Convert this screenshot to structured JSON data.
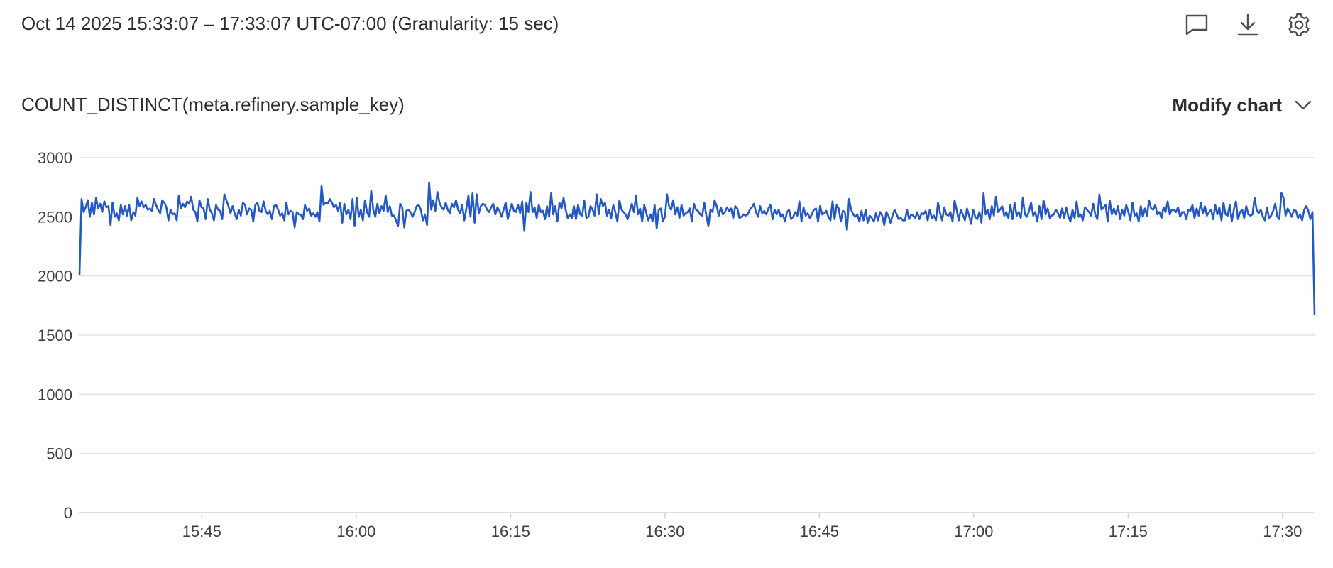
{
  "header": {
    "time_range": "Oct 14 2025 15:33:07 – 17:33:07 UTC-07:00 (Granularity: 15 sec)",
    "icons": [
      "comment-icon",
      "download-icon",
      "settings-gear-icon"
    ]
  },
  "chart_header": {
    "title": "COUNT_DISTINCT(meta.refinery.sample_key)",
    "modify_label": "Modify chart"
  },
  "chart_data": {
    "type": "line",
    "title": "COUNT_DISTINCT(meta.refinery.sample_key)",
    "x_start": "15:33:07",
    "x_end": "17:33:07",
    "granularity_sec": 15,
    "x_ticks": [
      "15:45",
      "16:00",
      "16:15",
      "16:30",
      "16:45",
      "17:00",
      "17:15",
      "17:30"
    ],
    "y_ticks": [
      "0",
      "500",
      "1000",
      "1500",
      "2000",
      "2500",
      "3000"
    ],
    "ylim": [
      0,
      3000
    ],
    "grid": true,
    "line_color": "#2458c6",
    "series": [
      {
        "values": [
          2010,
          2650,
          2540,
          2580,
          2640,
          2500,
          2620,
          2520,
          2660,
          2570,
          2610,
          2540,
          2630,
          2580,
          2590,
          2430,
          2620,
          2500,
          2530,
          2470,
          2600,
          2520,
          2590,
          2510,
          2600,
          2470,
          2540,
          2510,
          2660,
          2590,
          2630,
          2580,
          2600,
          2560,
          2570,
          2550,
          2650,
          2600,
          2560,
          2530,
          2640,
          2620,
          2580,
          2470,
          2560,
          2520,
          2530,
          2470,
          2680,
          2570,
          2610,
          2580,
          2630,
          2610,
          2670,
          2560,
          2540,
          2460,
          2640,
          2580,
          2570,
          2480,
          2650,
          2560,
          2530,
          2470,
          2600,
          2560,
          2550,
          2480,
          2690,
          2640,
          2590,
          2530,
          2590,
          2530,
          2480,
          2560,
          2510,
          2620,
          2600,
          2520,
          2570,
          2560,
          2460,
          2600,
          2620,
          2550,
          2540,
          2630,
          2550,
          2520,
          2550,
          2480,
          2590,
          2600,
          2560,
          2510,
          2530,
          2470,
          2620,
          2520,
          2550,
          2540,
          2410,
          2540,
          2520,
          2520,
          2480,
          2600,
          2550,
          2570,
          2510,
          2530,
          2500,
          2540,
          2460,
          2760,
          2600,
          2620,
          2610,
          2650,
          2620,
          2580,
          2600,
          2550,
          2620,
          2450,
          2610,
          2520,
          2560,
          2480,
          2650,
          2420,
          2660,
          2500,
          2560,
          2470,
          2640,
          2540,
          2500,
          2720,
          2560,
          2500,
          2610,
          2530,
          2590,
          2550,
          2680,
          2540,
          2590,
          2510,
          2510,
          2470,
          2420,
          2610,
          2580,
          2410,
          2550,
          2560,
          2540,
          2500,
          2540,
          2590,
          2600,
          2560,
          2470,
          2520,
          2430,
          2790,
          2560,
          2640,
          2550,
          2710,
          2620,
          2580,
          2560,
          2620,
          2560,
          2530,
          2610,
          2580,
          2640,
          2560,
          2530,
          2600,
          2470,
          2570,
          2680,
          2500,
          2700,
          2450,
          2690,
          2530,
          2590,
          2610,
          2600,
          2560,
          2540,
          2580,
          2610,
          2520,
          2580,
          2550,
          2500,
          2560,
          2620,
          2480,
          2550,
          2610,
          2550,
          2540,
          2600,
          2530,
          2630,
          2380,
          2620,
          2540,
          2710,
          2540,
          2580,
          2490,
          2600,
          2540,
          2550,
          2480,
          2590,
          2500,
          2700,
          2520,
          2590,
          2460,
          2620,
          2570,
          2660,
          2560,
          2490,
          2520,
          2490,
          2590,
          2480,
          2600,
          2520,
          2510,
          2640,
          2490,
          2500,
          2590,
          2560,
          2510,
          2690,
          2520,
          2650,
          2590,
          2620,
          2510,
          2560,
          2490,
          2600,
          2540,
          2460,
          2640,
          2560,
          2540,
          2520,
          2480,
          2550,
          2610,
          2540,
          2680,
          2520,
          2570,
          2460,
          2600,
          2530,
          2470,
          2520,
          2460,
          2600,
          2400,
          2560,
          2570,
          2460,
          2500,
          2690,
          2590,
          2560,
          2640,
          2520,
          2580,
          2490,
          2600,
          2510,
          2530,
          2540,
          2570,
          2460,
          2610,
          2560,
          2550,
          2520,
          2510,
          2620,
          2510,
          2420,
          2560,
          2540,
          2640,
          2590,
          2510,
          2580,
          2520,
          2540,
          2580,
          2550,
          2570,
          2490,
          2590,
          2570,
          2490,
          2500,
          2520,
          2510,
          2520,
          2560,
          2580,
          2610,
          2540,
          2500,
          2590,
          2530,
          2550,
          2520,
          2570,
          2600,
          2480,
          2560,
          2520,
          2560,
          2500,
          2520,
          2460,
          2540,
          2560,
          2480,
          2500,
          2540,
          2510,
          2630,
          2460,
          2580,
          2510,
          2530,
          2490,
          2520,
          2560,
          2570,
          2460,
          2590,
          2520,
          2530,
          2550,
          2500,
          2470,
          2630,
          2480,
          2600,
          2570,
          2460,
          2550,
          2540,
          2390,
          2650,
          2560,
          2520,
          2500,
          2520,
          2460,
          2550,
          2470,
          2560,
          2450,
          2510,
          2490,
          2460,
          2530,
          2470,
          2540,
          2510,
          2430,
          2540,
          2510,
          2450,
          2510,
          2560,
          2520,
          2480,
          2490,
          2470,
          2470,
          2560,
          2480,
          2520,
          2510,
          2490,
          2540,
          2480,
          2530,
          2520,
          2550,
          2470,
          2560,
          2490,
          2510,
          2470,
          2620,
          2530,
          2470,
          2580,
          2520,
          2510,
          2540,
          2460,
          2640,
          2560,
          2470,
          2560,
          2520,
          2470,
          2570,
          2510,
          2440,
          2560,
          2500,
          2480,
          2540,
          2450,
          2700,
          2520,
          2560,
          2480,
          2590,
          2510,
          2670,
          2540,
          2560,
          2590,
          2510,
          2540,
          2490,
          2600,
          2480,
          2620,
          2510,
          2540,
          2490,
          2660,
          2520,
          2500,
          2550,
          2620,
          2510,
          2540,
          2460,
          2590,
          2480,
          2640,
          2520,
          2570,
          2490,
          2510,
          2520,
          2560,
          2530,
          2490,
          2570,
          2490,
          2580,
          2500,
          2460,
          2560,
          2490,
          2630,
          2500,
          2520,
          2470,
          2580,
          2560,
          2540,
          2510,
          2610,
          2520,
          2480,
          2690,
          2560,
          2580,
          2600,
          2460,
          2640,
          2520,
          2570,
          2520,
          2590,
          2480,
          2560,
          2510,
          2600,
          2540,
          2470,
          2620,
          2510,
          2530,
          2460,
          2590,
          2500,
          2570,
          2510,
          2640,
          2570,
          2560,
          2600,
          2520,
          2540,
          2490,
          2580,
          2540,
          2630,
          2520,
          2560,
          2560,
          2540,
          2580,
          2500,
          2540,
          2540,
          2480,
          2560,
          2550,
          2600,
          2490,
          2570,
          2510,
          2620,
          2530,
          2590,
          2510,
          2540,
          2560,
          2480,
          2600,
          2520,
          2580,
          2470,
          2620,
          2520,
          2510,
          2600,
          2460,
          2560,
          2630,
          2480,
          2540,
          2560,
          2490,
          2590,
          2520,
          2510,
          2520,
          2660,
          2560,
          2530,
          2560,
          2500,
          2470,
          2580,
          2490,
          2510,
          2550,
          2610,
          2500,
          2480,
          2700,
          2660,
          2510,
          2570,
          2540,
          2500,
          2560,
          2550,
          2490,
          2520,
          2470,
          2560,
          2590,
          2550,
          2480,
          2540,
          1670
        ]
      }
    ]
  }
}
